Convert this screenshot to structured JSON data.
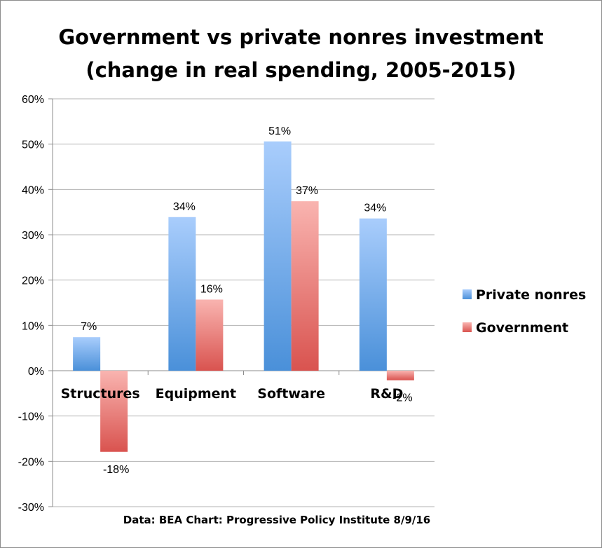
{
  "chart_data": {
    "type": "bar",
    "title_line1": "Government vs private nonres investment",
    "title_line2": "(change in real spending, 2005-2015)",
    "categories": [
      "Structures",
      "Equipment",
      "Software",
      "R&D"
    ],
    "series": [
      {
        "name": "Private nonres",
        "values": [
          7.4,
          33.9,
          50.6,
          33.6
        ],
        "labels": [
          "7%",
          "34%",
          "51%",
          "34%"
        ],
        "color_top": "#a9cdfc",
        "color_bottom": "#4a90d9"
      },
      {
        "name": "Government",
        "values": [
          -17.9,
          15.7,
          37.4,
          -2.1
        ],
        "labels": [
          "-18%",
          "16%",
          "37%",
          "-2%"
        ],
        "color_top": "#f9b4b0",
        "color_bottom": "#d9534f"
      }
    ],
    "ylim": [
      -30,
      60
    ],
    "yticks": [
      60,
      50,
      40,
      30,
      20,
      10,
      0,
      -10,
      -20,
      -30
    ],
    "ytick_labels": [
      "60%",
      "50%",
      "40%",
      "30%",
      "20%",
      "10%",
      "0%",
      "-10%",
      "-20%",
      "-30%"
    ],
    "grid": true,
    "legend_position": "right",
    "source": "Data: BEA  Chart: Progressive Policy Institute  8/9/16"
  }
}
